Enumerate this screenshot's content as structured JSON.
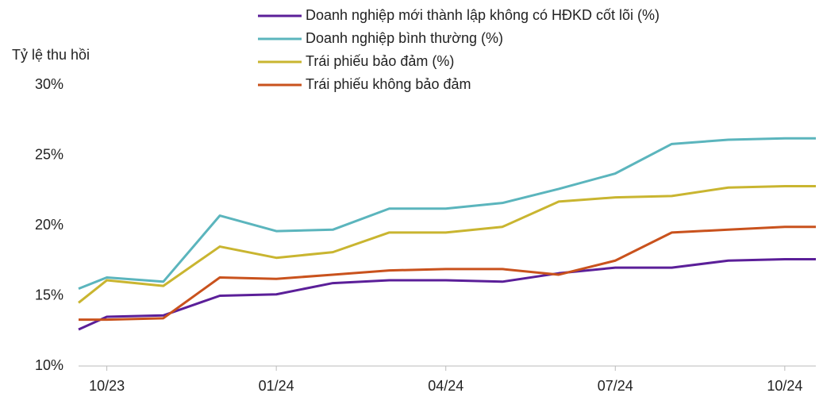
{
  "chart_data": {
    "type": "line",
    "y_label": "Tỷ lệ thu hồi",
    "x": [
      -0.5,
      0,
      1,
      2,
      3,
      4,
      5,
      6,
      7,
      8,
      9,
      10,
      11,
      12,
      12.55
    ],
    "xlim": [
      -0.5,
      12.55
    ],
    "xticks": [
      {
        "value": 0,
        "label": "10/23"
      },
      {
        "value": 3,
        "label": "01/24"
      },
      {
        "value": 6,
        "label": "04/24"
      },
      {
        "value": 9,
        "label": "07/24"
      },
      {
        "value": 12,
        "label": "10/24"
      }
    ],
    "ylim": [
      10,
      30
    ],
    "yticks": [
      {
        "value": 10,
        "label": "10%"
      },
      {
        "value": 15,
        "label": "15%"
      },
      {
        "value": 20,
        "label": "20%"
      },
      {
        "value": 25,
        "label": "25%"
      },
      {
        "value": 30,
        "label": "30%"
      }
    ],
    "series": [
      {
        "name": "Doanh nghiệp mới thành lập không có HĐKD cốt lõi (%)",
        "color": "#5b1f99",
        "values": [
          12.6,
          13.5,
          13.6,
          15.0,
          15.1,
          15.9,
          16.1,
          16.1,
          16.0,
          16.6,
          17.0,
          17.0,
          17.5,
          17.6,
          17.6
        ]
      },
      {
        "name": "Doanh nghiệp bình thường (%)",
        "color": "#5bb5bd",
        "values": [
          15.5,
          16.3,
          16.0,
          20.7,
          19.6,
          19.7,
          21.2,
          21.2,
          21.6,
          22.6,
          23.7,
          25.8,
          26.1,
          26.2,
          26.2
        ]
      },
      {
        "name": "Trái phiếu bảo đảm (%)",
        "color": "#c9b530",
        "values": [
          14.5,
          16.1,
          15.7,
          18.5,
          17.7,
          18.1,
          19.5,
          19.5,
          19.9,
          21.7,
          22.0,
          22.1,
          22.7,
          22.8,
          22.8
        ]
      },
      {
        "name": "Trái phiếu không bảo đảm",
        "color": "#c9521d",
        "values": [
          13.3,
          13.3,
          13.4,
          16.3,
          16.2,
          16.5,
          16.8,
          16.9,
          16.9,
          16.5,
          17.5,
          19.5,
          19.7,
          19.9,
          19.9
        ]
      }
    ]
  }
}
